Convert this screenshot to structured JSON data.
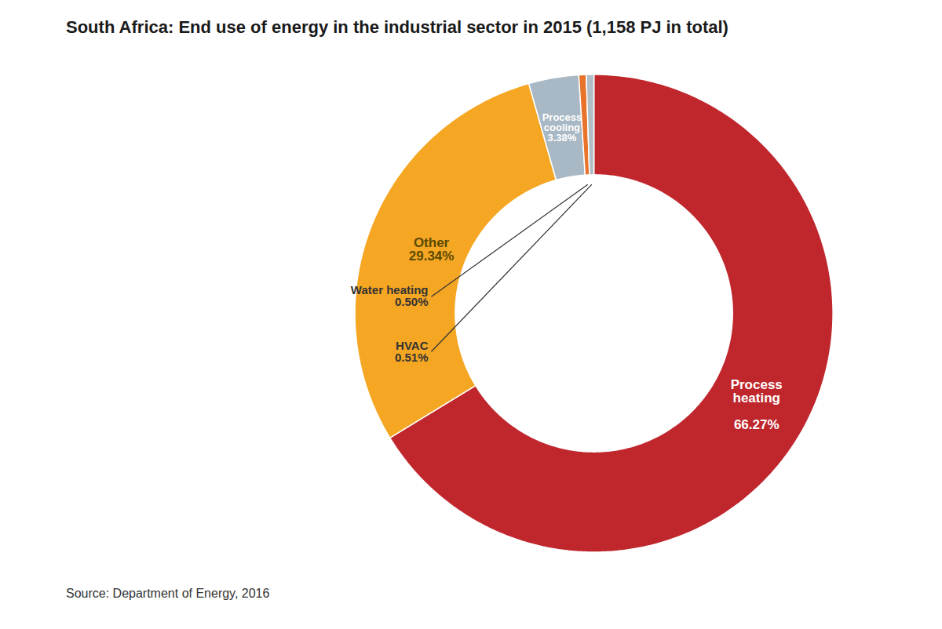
{
  "chart_data": {
    "type": "pie",
    "title": "South Africa: End use of energy in the industrial sector in 2015 (1,158 PJ in total)",
    "source": "Source: Department of Energy, 2016",
    "categories": [
      "Process\nheating",
      "Other",
      "Process\ncooling",
      "Water heating",
      "HVAC"
    ],
    "values": [
      66.27,
      29.34,
      3.38,
      0.5,
      0.51
    ],
    "value_labels": [
      "66.27%",
      "29.34%",
      "3.38%",
      "0.50%",
      "0.51%"
    ],
    "colors": [
      "#C0272D",
      "#F5A623",
      "#A8B8C4",
      "#E8732A",
      "#B0BEC5"
    ],
    "data_labels": true
  }
}
